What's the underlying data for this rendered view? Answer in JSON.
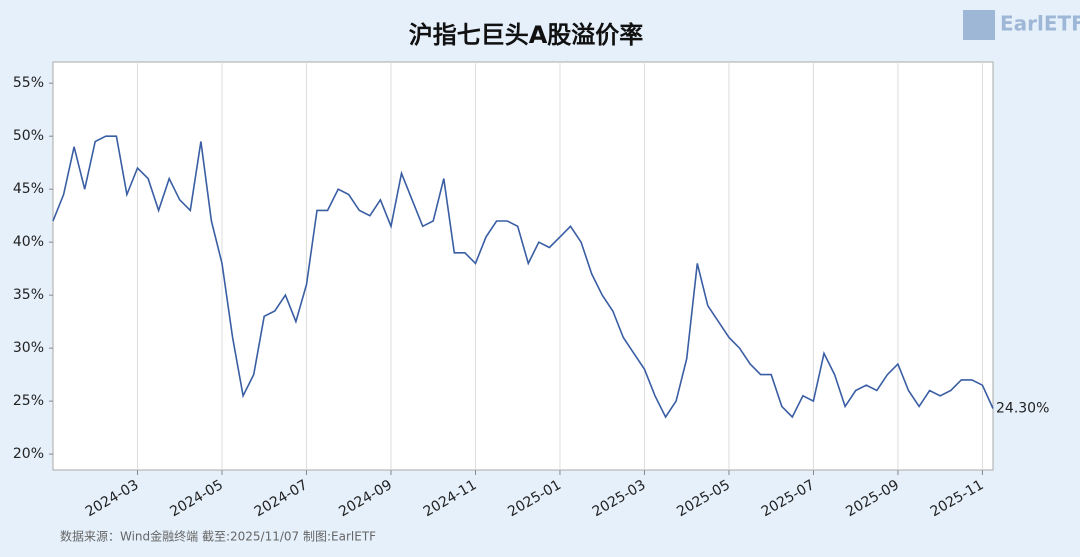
{
  "chart_data": {
    "type": "line",
    "title": "沪指七巨头A股溢价率",
    "logo": "EarlETF",
    "source": "数据来源：Wind金融终端 截至:2025/11/07 制图:EarlETF",
    "categories": [
      null,
      null,
      null,
      null,
      null,
      null,
      null,
      null,
      "2024-03",
      null,
      null,
      null,
      null,
      null,
      null,
      null,
      "2024-05",
      null,
      null,
      null,
      null,
      null,
      null,
      null,
      "2024-07",
      null,
      null,
      null,
      null,
      null,
      null,
      null,
      "2024-09",
      null,
      null,
      null,
      null,
      null,
      null,
      null,
      "2024-11",
      null,
      null,
      null,
      null,
      null,
      null,
      null,
      "2025-01",
      null,
      null,
      null,
      null,
      null,
      null,
      null,
      "2025-03",
      null,
      null,
      null,
      null,
      null,
      null,
      null,
      "2025-05",
      null,
      null,
      null,
      null,
      null,
      null,
      null,
      "2025-07",
      null,
      null,
      null,
      null,
      null,
      null,
      null,
      "2025-09",
      null,
      null,
      null,
      null,
      null,
      null,
      null,
      "2025-11",
      null
    ],
    "series": [
      {
        "name": "沪指七巨头A股溢价率",
        "color": "#3a5ea3",
        "values": [
          42,
          44.5,
          49,
          45,
          49.5,
          50,
          50,
          44.5,
          47,
          46,
          43,
          46,
          44,
          43,
          49.5,
          42,
          38,
          31,
          25.5,
          27.5,
          33,
          33.5,
          35,
          32.5,
          36,
          43,
          43,
          45,
          44.5,
          43,
          42.5,
          44,
          41.5,
          46.5,
          44,
          41.5,
          42,
          46,
          39,
          39,
          38,
          40.5,
          42,
          42,
          41.5,
          38,
          40,
          39.5,
          40.5,
          41.5,
          40,
          37,
          35,
          33.5,
          31,
          29.5,
          28,
          25.5,
          23.5,
          25,
          29,
          38,
          34,
          32.5,
          31,
          30,
          28.5,
          27.5,
          27.5,
          24.5,
          23.5,
          25.5,
          25,
          29.5,
          27.5,
          24.5,
          26,
          26.5,
          26,
          27.5,
          28.5,
          26,
          24.5,
          26,
          25.5,
          26,
          27,
          27,
          26.5,
          24.3
        ],
        "value_labels": [
          null,
          null,
          null,
          null,
          null,
          null,
          null,
          null,
          null,
          null,
          null,
          null,
          null,
          null,
          null,
          null,
          null,
          null,
          null,
          null,
          null,
          null,
          null,
          null,
          null,
          null,
          null,
          null,
          null,
          null,
          null,
          null,
          null,
          null,
          null,
          null,
          null,
          null,
          null,
          null,
          null,
          null,
          null,
          null,
          null,
          null,
          null,
          null,
          null,
          null,
          null,
          null,
          null,
          null,
          null,
          null,
          null,
          null,
          null,
          null,
          null,
          null,
          null,
          null,
          null,
          null,
          null,
          null,
          null,
          null,
          null,
          null,
          null,
          null,
          null,
          null,
          null,
          null,
          null,
          null,
          null,
          null,
          null,
          null,
          null,
          null,
          null,
          null,
          null,
          "24.30%"
        ]
      }
    ],
    "ylim": [
      18.5,
      57
    ],
    "yticks": [
      {
        "value": 20,
        "label": "20%"
      },
      {
        "value": 25,
        "label": "25%"
      },
      {
        "value": 30,
        "label": "30%"
      },
      {
        "value": 35,
        "label": "35%"
      },
      {
        "value": 40,
        "label": "40%"
      },
      {
        "value": 45,
        "label": "45%"
      },
      {
        "value": 50,
        "label": "50%"
      },
      {
        "value": 55,
        "label": "55%"
      }
    ],
    "grid": true
  }
}
